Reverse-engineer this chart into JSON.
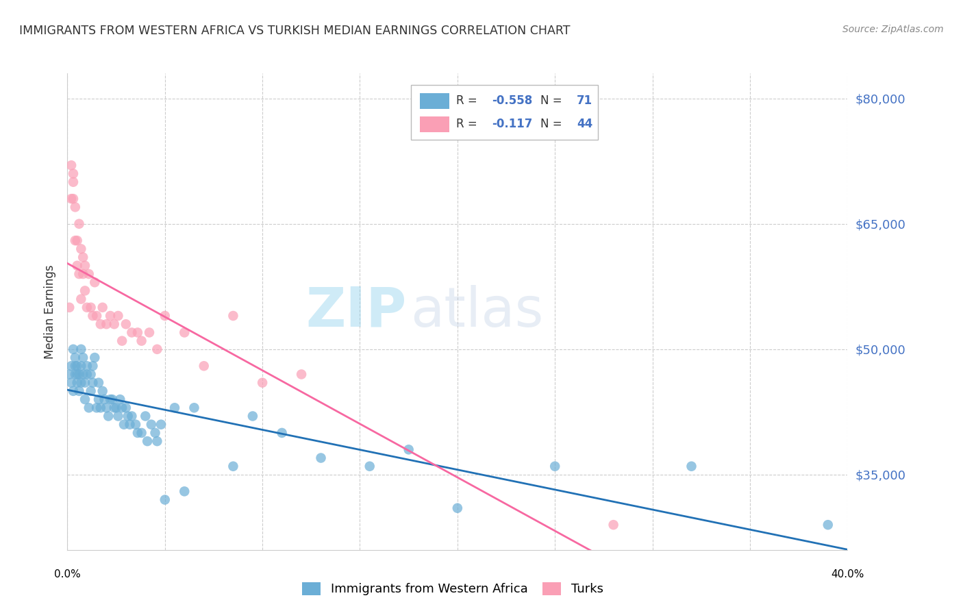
{
  "title": "IMMIGRANTS FROM WESTERN AFRICA VS TURKISH MEDIAN EARNINGS CORRELATION CHART",
  "source": "Source: ZipAtlas.com",
  "ylabel": "Median Earnings",
  "yticks": [
    35000,
    50000,
    65000,
    80000
  ],
  "ytick_labels": [
    "$35,000",
    "$50,000",
    "$65,000",
    "$80,000"
  ],
  "xmin": 0.0,
  "xmax": 0.4,
  "ymin": 26000,
  "ymax": 83000,
  "blue_color": "#6baed6",
  "pink_color": "#fa9fb5",
  "blue_line_color": "#2171b5",
  "pink_line_color": "#f768a1",
  "background": "#ffffff",
  "watermark_zip": "ZIP",
  "watermark_atlas": "atlas",
  "blue_x": [
    0.001,
    0.002,
    0.002,
    0.003,
    0.003,
    0.004,
    0.004,
    0.004,
    0.005,
    0.005,
    0.005,
    0.006,
    0.006,
    0.007,
    0.007,
    0.007,
    0.008,
    0.008,
    0.009,
    0.009,
    0.01,
    0.01,
    0.011,
    0.012,
    0.012,
    0.013,
    0.013,
    0.014,
    0.015,
    0.016,
    0.016,
    0.017,
    0.018,
    0.019,
    0.02,
    0.021,
    0.022,
    0.023,
    0.024,
    0.025,
    0.026,
    0.027,
    0.028,
    0.029,
    0.03,
    0.031,
    0.032,
    0.033,
    0.035,
    0.036,
    0.038,
    0.04,
    0.041,
    0.043,
    0.045,
    0.046,
    0.048,
    0.05,
    0.055,
    0.06,
    0.065,
    0.085,
    0.095,
    0.11,
    0.13,
    0.155,
    0.175,
    0.2,
    0.25,
    0.32,
    0.39
  ],
  "blue_y": [
    47000,
    46000,
    48000,
    45000,
    50000,
    47000,
    49000,
    48000,
    46000,
    47000,
    48000,
    45000,
    47000,
    48000,
    46000,
    50000,
    47000,
    49000,
    44000,
    46000,
    48000,
    47000,
    43000,
    47000,
    45000,
    46000,
    48000,
    49000,
    43000,
    44000,
    46000,
    43000,
    45000,
    44000,
    43000,
    42000,
    44000,
    44000,
    43000,
    43000,
    42000,
    44000,
    43000,
    41000,
    43000,
    42000,
    41000,
    42000,
    41000,
    40000,
    40000,
    42000,
    39000,
    41000,
    40000,
    39000,
    41000,
    32000,
    43000,
    33000,
    43000,
    36000,
    42000,
    40000,
    37000,
    36000,
    38000,
    31000,
    36000,
    36000,
    29000
  ],
  "pink_x": [
    0.001,
    0.002,
    0.002,
    0.003,
    0.003,
    0.003,
    0.004,
    0.004,
    0.005,
    0.005,
    0.006,
    0.006,
    0.007,
    0.007,
    0.008,
    0.008,
    0.009,
    0.009,
    0.01,
    0.011,
    0.012,
    0.013,
    0.014,
    0.015,
    0.017,
    0.018,
    0.02,
    0.022,
    0.024,
    0.026,
    0.028,
    0.03,
    0.033,
    0.036,
    0.038,
    0.042,
    0.046,
    0.05,
    0.06,
    0.07,
    0.085,
    0.1,
    0.12,
    0.28
  ],
  "pink_y": [
    55000,
    72000,
    68000,
    70000,
    71000,
    68000,
    63000,
    67000,
    60000,
    63000,
    59000,
    65000,
    62000,
    56000,
    59000,
    61000,
    57000,
    60000,
    55000,
    59000,
    55000,
    54000,
    58000,
    54000,
    53000,
    55000,
    53000,
    54000,
    53000,
    54000,
    51000,
    53000,
    52000,
    52000,
    51000,
    52000,
    50000,
    54000,
    52000,
    48000,
    54000,
    46000,
    47000,
    29000
  ]
}
